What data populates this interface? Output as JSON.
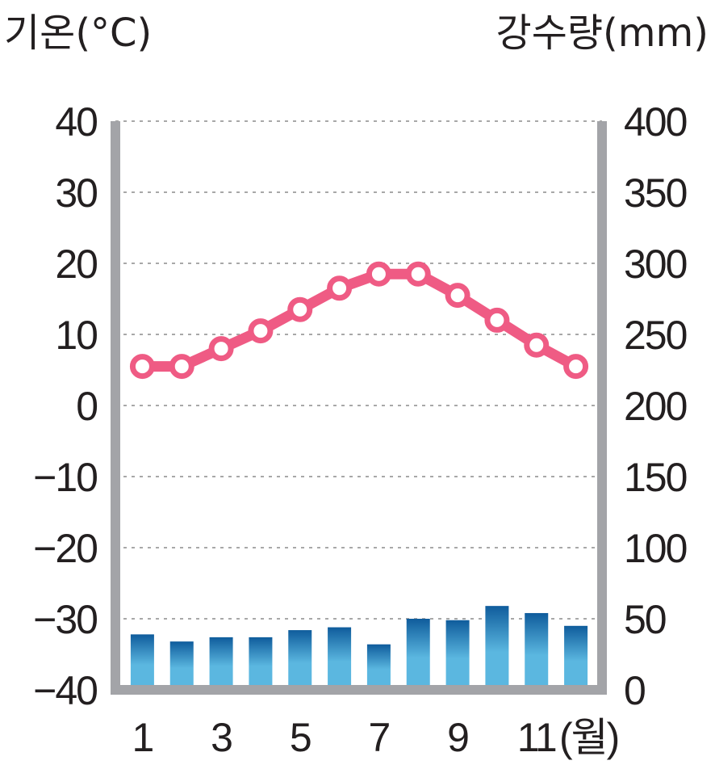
{
  "chart_data": {
    "type": "bar+line",
    "left_axis_label": "기온(°C)",
    "right_axis_label": "강수량(mm)",
    "x_unit": "(월)",
    "months": [
      1,
      2,
      3,
      4,
      5,
      6,
      7,
      8,
      9,
      10,
      11,
      12
    ],
    "x_tick_labels": [
      "1",
      "3",
      "5",
      "7",
      "9",
      "11"
    ],
    "temperature": {
      "unit": "°C",
      "ylim": [
        -40,
        40
      ],
      "ticks": [
        "40",
        "30",
        "20",
        "10",
        "0",
        "−10",
        "−20",
        "−30",
        "−40"
      ],
      "values": [
        5.5,
        5.5,
        8,
        10.5,
        13.5,
        16.5,
        18.5,
        18.5,
        15.5,
        12,
        8.5,
        5.5
      ]
    },
    "precipitation": {
      "unit": "mm",
      "ylim": [
        0,
        400
      ],
      "ticks": [
        "400",
        "350",
        "300",
        "250",
        "200",
        "150",
        "100",
        "50",
        "0"
      ],
      "values": [
        39,
        34,
        37,
        37,
        42,
        44,
        32,
        50,
        49,
        59,
        54,
        45
      ]
    },
    "gridlines": "dotted",
    "colors": {
      "temperature_line": "#ef5b84",
      "bar_top": "#0f5c9c",
      "bar_bottom": "#5bb7e0",
      "frame": "#a3a4a8",
      "grid": "#a8a8a8",
      "text": "#231f20"
    }
  }
}
